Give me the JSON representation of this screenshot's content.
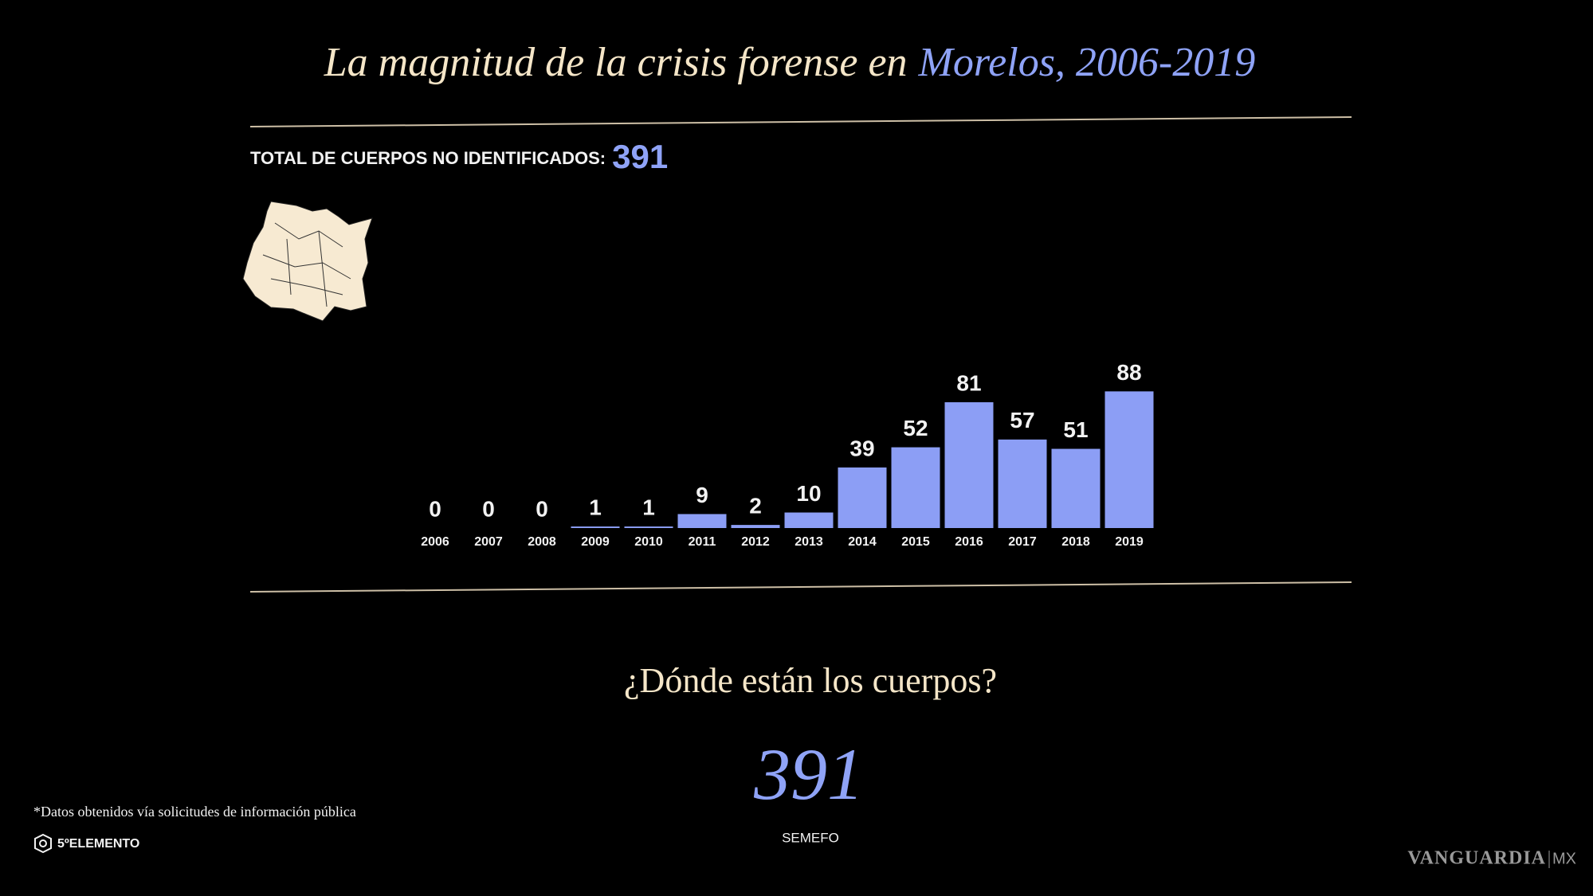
{
  "chart_data": {
    "type": "bar",
    "title": "La magnitud de la crisis forense en",
    "title_highlight": "Morelos, 2006-2019",
    "total_label": "TOTAL DE CUERPOS NO IDENTIFICADOS:",
    "total": 391,
    "categories": [
      "2006",
      "2007",
      "2008",
      "2009",
      "2010",
      "2011",
      "2012",
      "2013",
      "2014",
      "2015",
      "2016",
      "2017",
      "2018",
      "2019"
    ],
    "values": [
      0,
      0,
      0,
      1,
      1,
      9,
      2,
      10,
      39,
      52,
      81,
      57,
      51,
      88
    ],
    "color": "#8c9ef5",
    "question": "¿Dónde están los cuerpos?",
    "location_total": 391,
    "location_name": "SEMEFO",
    "footnote": "*Datos obtenidos vía solicitudes de información pública",
    "logo": "5ºELEMENTO",
    "watermark": "VANGUARDIA",
    "watermark_suffix": "MX"
  }
}
